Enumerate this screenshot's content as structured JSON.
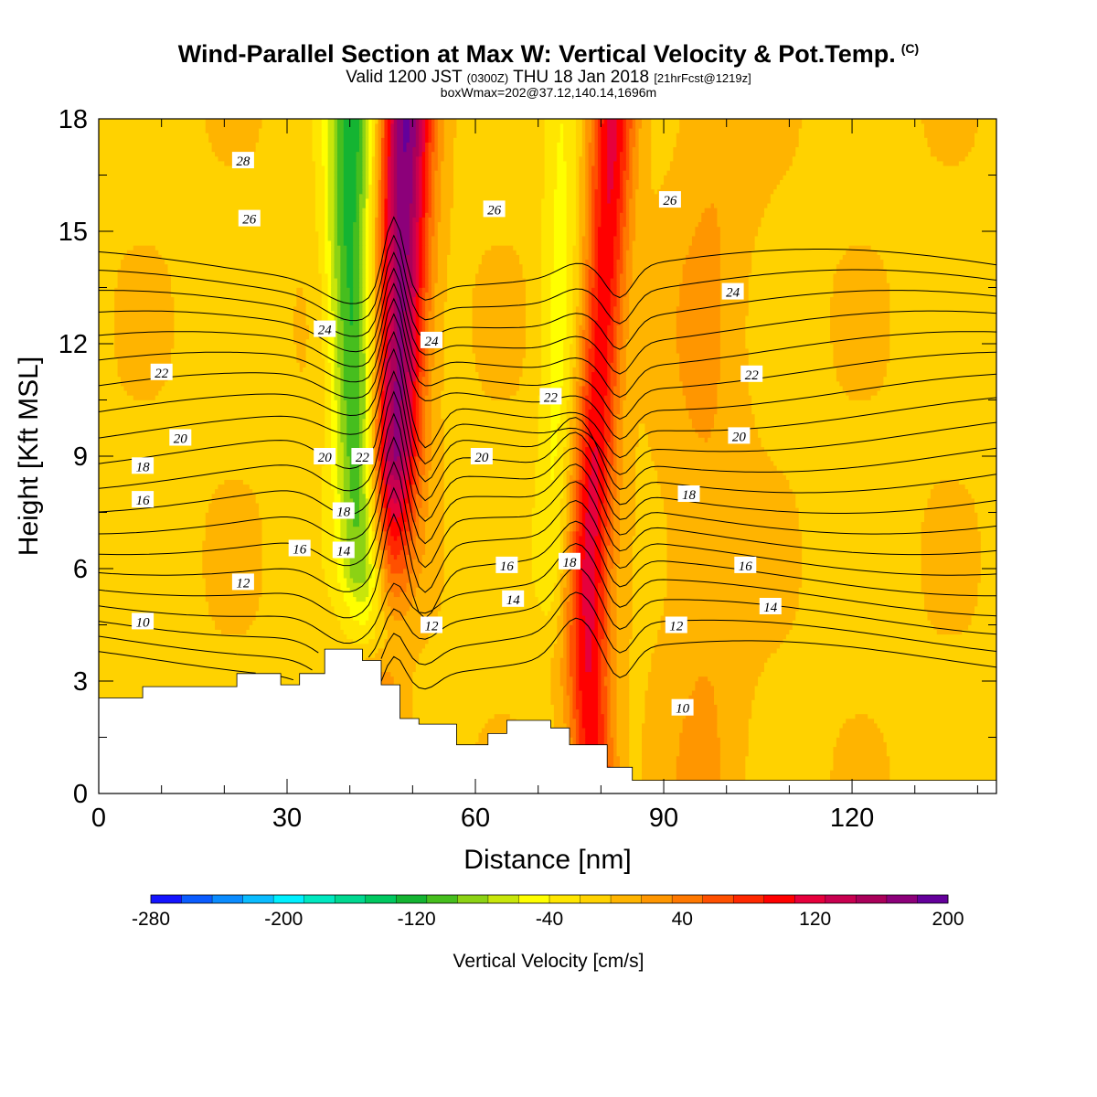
{
  "title": {
    "main": "Wind-Parallel Section at Max W: Vertical Velocity & Pot.Temp.",
    "mark": "(C)",
    "sub_prefix": "Valid 1200 JST",
    "sub_utc": "(0300Z)",
    "sub_date": "THU 18 Jan 2018",
    "sub_fcst": "[21hrFcst@1219z]",
    "sub2": "boxWmax=202@37.12,140.14,1696m"
  },
  "chart_data": {
    "type": "heatmap",
    "xlabel": "Distance [nm]",
    "ylabel": "Height [Kft MSL]",
    "xlim": [
      0,
      143
    ],
    "ylim": [
      0,
      18
    ],
    "x_ticks": [
      0,
      30,
      60,
      90,
      120
    ],
    "y_ticks": [
      0,
      3,
      6,
      9,
      12,
      15,
      18
    ],
    "colorbar": {
      "label": "Vertical Velocity [cm/s]",
      "min": -280,
      "max": 200,
      "step": 20,
      "tick_labels": [
        "-280",
        "-200",
        "-120",
        "-40",
        "40",
        "120",
        "200"
      ],
      "colors": [
        "#1414ff",
        "#0a5cff",
        "#0a8cff",
        "#0abcff",
        "#00f0ff",
        "#00e8c0",
        "#00d890",
        "#00c860",
        "#14b432",
        "#46be1e",
        "#8cd214",
        "#c8e60a",
        "#ffff00",
        "#ffe600",
        "#ffd200",
        "#ffb400",
        "#ff9600",
        "#ff7800",
        "#ff5000",
        "#ff2800",
        "#ff0000",
        "#e6003c",
        "#c80050",
        "#aa005a",
        "#8c007a",
        "#64009b"
      ]
    },
    "terrain_kft": [
      [
        0,
        2.55
      ],
      [
        7,
        2.55
      ],
      [
        7,
        2.85
      ],
      [
        22,
        2.85
      ],
      [
        22,
        3.2
      ],
      [
        29,
        3.2
      ],
      [
        29,
        2.9
      ],
      [
        32,
        2.9
      ],
      [
        32,
        3.2
      ],
      [
        36,
        3.2
      ],
      [
        36,
        3.85
      ],
      [
        42,
        3.85
      ],
      [
        42,
        3.55
      ],
      [
        45,
        3.55
      ],
      [
        45,
        2.9
      ],
      [
        48,
        2.9
      ],
      [
        48,
        2.0
      ],
      [
        51,
        2.0
      ],
      [
        51,
        1.85
      ],
      [
        57,
        1.85
      ],
      [
        57,
        1.3
      ],
      [
        62,
        1.3
      ],
      [
        62,
        1.6
      ],
      [
        65,
        1.6
      ],
      [
        65,
        1.95
      ],
      [
        72,
        1.95
      ],
      [
        72,
        1.75
      ],
      [
        75,
        1.75
      ],
      [
        75,
        1.3
      ],
      [
        81,
        1.3
      ],
      [
        81,
        0.7
      ],
      [
        85,
        0.7
      ],
      [
        85,
        0.35
      ],
      [
        143,
        0.35
      ]
    ],
    "updraft_bands": [
      {
        "axis_x": [
          [
            0,
            47
          ],
          [
            3,
            44.5
          ],
          [
            6,
            46
          ],
          [
            9,
            47
          ],
          [
            12,
            48
          ],
          [
            15,
            48.5
          ],
          [
            18,
            49
          ]
        ],
        "width_nm": 4.0,
        "peak_cm_s": 200
      },
      {
        "axis_x": [
          [
            0,
            79
          ],
          [
            3,
            78
          ],
          [
            6,
            78
          ],
          [
            9,
            79
          ],
          [
            12,
            80
          ],
          [
            15,
            81
          ],
          [
            18,
            82
          ]
        ],
        "width_nm": 3.4,
        "peak_cm_s": 125
      },
      {
        "axis_x": [
          [
            0,
            97
          ],
          [
            6,
            96
          ],
          [
            12,
            97
          ],
          [
            18,
            98
          ]
        ],
        "width_nm": 7,
        "peak_cm_s": 25
      }
    ],
    "downdraft_bands": [
      {
        "axis_x": [
          [
            3.5,
            44
          ],
          [
            6,
            42.5
          ],
          [
            9,
            41.5
          ],
          [
            12,
            40.5
          ],
          [
            15,
            40
          ],
          [
            18,
            40.5
          ]
        ],
        "width_nm": 3.8,
        "peak_cm_s": -125
      },
      {
        "axis_x": [
          [
            4,
            72
          ],
          [
            10,
            73
          ],
          [
            18,
            74
          ]
        ],
        "width_nm": 3,
        "peak_cm_s": -40
      }
    ],
    "theta_contours": {
      "levels": [
        9,
        10,
        11,
        12,
        13,
        14,
        15,
        16,
        17,
        18,
        19,
        20,
        21,
        22,
        23,
        24,
        25,
        26,
        27,
        28
      ],
      "labels": [
        {
          "text": "28",
          "x": 23,
          "y": 16.9
        },
        {
          "text": "26",
          "x": 24,
          "y": 15.35
        },
        {
          "text": "26",
          "x": 63,
          "y": 15.6
        },
        {
          "text": "26",
          "x": 91,
          "y": 15.85
        },
        {
          "text": "24",
          "x": 36,
          "y": 12.4
        },
        {
          "text": "24",
          "x": 53,
          "y": 12.1
        },
        {
          "text": "24",
          "x": 101,
          "y": 13.4
        },
        {
          "text": "22",
          "x": 10,
          "y": 11.25
        },
        {
          "text": "22",
          "x": 72,
          "y": 10.6
        },
        {
          "text": "22",
          "x": 104,
          "y": 11.2
        },
        {
          "text": "20",
          "x": 13,
          "y": 9.5
        },
        {
          "text": "20",
          "x": 36,
          "y": 9.0
        },
        {
          "text": "20",
          "x": 61,
          "y": 9.0
        },
        {
          "text": "20",
          "x": 102,
          "y": 9.55
        },
        {
          "text": "22",
          "x": 42,
          "y": 9.0
        },
        {
          "text": "18",
          "x": 7,
          "y": 8.75
        },
        {
          "text": "18",
          "x": 39,
          "y": 7.55
        },
        {
          "text": "18",
          "x": 94,
          "y": 8.0
        },
        {
          "text": "16",
          "x": 7,
          "y": 7.85
        },
        {
          "text": "16",
          "x": 32,
          "y": 6.55
        },
        {
          "text": "16",
          "x": 65,
          "y": 6.1
        },
        {
          "text": "16",
          "x": 103,
          "y": 6.1
        },
        {
          "text": "18",
          "x": 75,
          "y": 6.2
        },
        {
          "text": "14",
          "x": 39,
          "y": 6.5
        },
        {
          "text": "14",
          "x": 66,
          "y": 5.2
        },
        {
          "text": "14",
          "x": 107,
          "y": 5.0
        },
        {
          "text": "12",
          "x": 23,
          "y": 5.65
        },
        {
          "text": "12",
          "x": 53,
          "y": 4.5
        },
        {
          "text": "12",
          "x": 92,
          "y": 4.5
        },
        {
          "text": "10",
          "x": 7,
          "y": 4.6
        },
        {
          "text": "10",
          "x": 93,
          "y": 2.3
        }
      ]
    }
  }
}
